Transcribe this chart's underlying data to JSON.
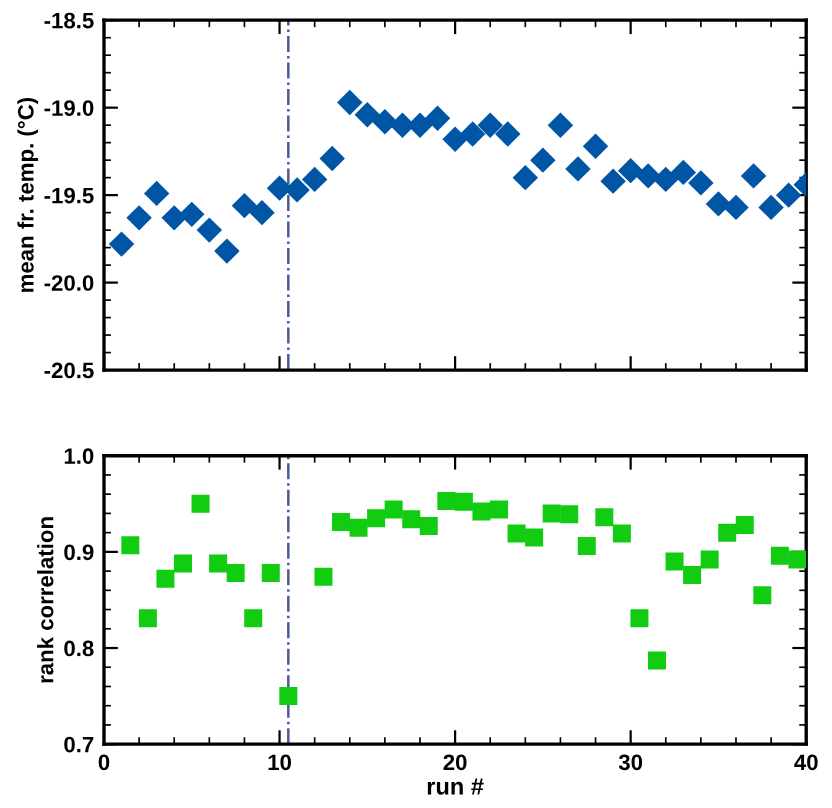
{
  "chart_data": [
    {
      "type": "scatter",
      "ylabel": "mean fr. temp. (°C)",
      "marker": "diamond",
      "tick_labels": "y",
      "grid": false,
      "legend": false,
      "xlim": [
        0,
        40
      ],
      "xticks": [
        0,
        10,
        20,
        30,
        40
      ],
      "ylim": [
        -20.5,
        -18.5
      ],
      "yticks": [
        -20.5,
        {
          "value": -20,
          "label": "-20.0"
        },
        -19.5,
        {
          "value": -19,
          "label": "-19.0"
        },
        -18.5
      ],
      "ref_lines": [
        {
          "axis": "x",
          "value": 10.5,
          "color": "#4a5a9a",
          "line_style": "dashdot"
        }
      ],
      "series": [
        {
          "color": "#0055a5",
          "x": [
            1,
            2,
            3,
            4,
            5,
            6,
            7,
            8,
            9,
            10,
            11,
            12,
            13,
            14,
            15,
            16,
            17,
            18,
            19,
            20,
            21,
            22,
            23,
            24,
            25,
            26,
            27,
            28,
            29,
            30,
            31,
            32,
            33,
            34,
            35,
            36,
            37,
            38,
            39,
            40
          ],
          "values": [
            -19.78,
            -19.63,
            -19.49,
            -19.63,
            -19.61,
            -19.7,
            -19.82,
            -19.56,
            -19.6,
            -19.46,
            -19.47,
            -19.41,
            -19.29,
            -18.97,
            -19.04,
            -19.08,
            -19.1,
            -19.1,
            -19.06,
            -19.18,
            -19.15,
            -19.1,
            -19.15,
            -19.4,
            -19.3,
            -19.1,
            -19.35,
            -19.22,
            -19.42,
            -19.36,
            -19.39,
            -19.41,
            -19.37,
            -19.43,
            -19.55,
            -19.57,
            -19.39,
            -19.57,
            -19.5,
            -19.44
          ]
        }
      ]
    },
    {
      "type": "scatter",
      "xlabel": "run #",
      "ylabel": "rank correlation",
      "marker": "square",
      "grid": false,
      "legend": false,
      "xlim": [
        0,
        40
      ],
      "xticks": [
        0,
        10,
        20,
        30,
        40
      ],
      "ylim": [
        0.7,
        1.0
      ],
      "yticks": [
        0.7,
        0.8,
        0.9,
        {
          "value": 1,
          "label": "1.0"
        }
      ],
      "ref_lines": [
        {
          "axis": "x",
          "value": 10.5,
          "color": "#4a5a9a",
          "line_style": "dashdot"
        }
      ],
      "series": [
        {
          "color": "#11cc11",
          "x": [
            1.5,
            2.5,
            3.5,
            4.5,
            5.5,
            6.5,
            7.5,
            8.5,
            9.5,
            10.5,
            12.5,
            13.5,
            14.5,
            15.5,
            16.5,
            17.5,
            18.5,
            19.5,
            20.5,
            21.5,
            22.5,
            23.5,
            24.5,
            25.5,
            26.5,
            27.5,
            28.5,
            29.5,
            30.5,
            31.5,
            32.5,
            33.5,
            34.5,
            35.5,
            36.5,
            37.5,
            38.5,
            39.5
          ],
          "values": [
            0.907,
            0.831,
            0.872,
            0.888,
            0.95,
            0.888,
            0.878,
            0.831,
            0.878,
            0.75,
            0.874,
            0.931,
            0.925,
            0.935,
            0.944,
            0.934,
            0.927,
            0.953,
            0.952,
            0.942,
            0.944,
            0.919,
            0.915,
            0.94,
            0.939,
            0.906,
            0.936,
            0.919,
            0.831,
            0.787,
            0.89,
            0.876,
            0.892,
            0.92,
            0.928,
            0.855,
            0.896,
            0.892
          ]
        }
      ]
    }
  ]
}
